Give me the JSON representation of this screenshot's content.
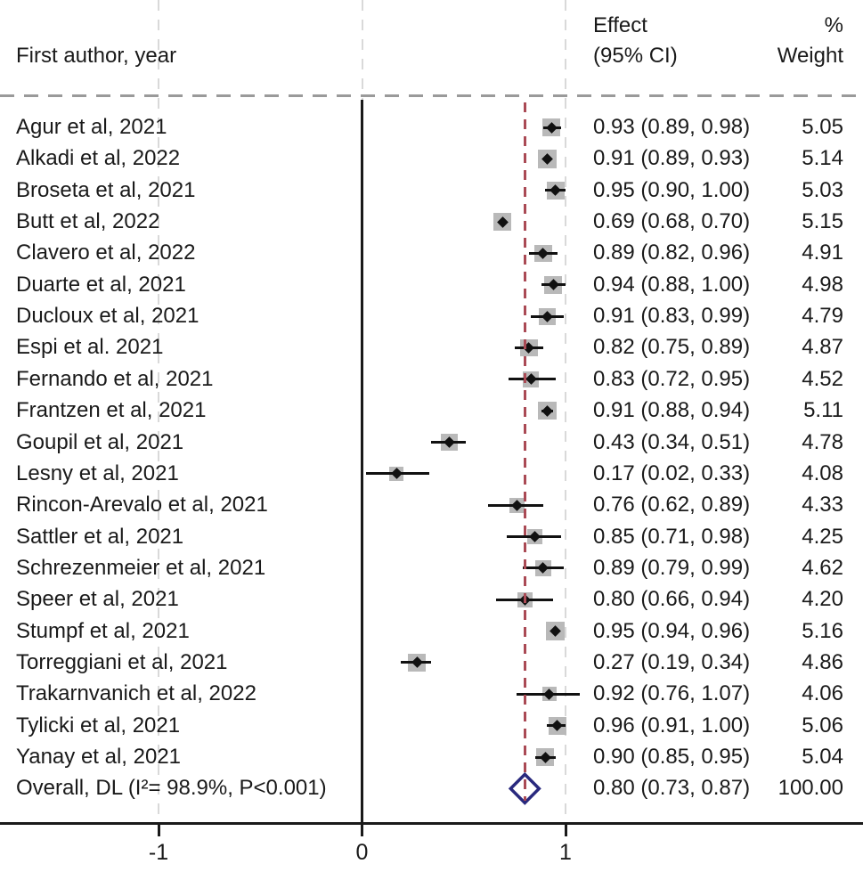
{
  "header": {
    "left": "First author, year",
    "effect_line1": "Effect",
    "effect_line2": "(95% CI)",
    "weight_line1": "%",
    "weight_line2": "Weight"
  },
  "chart_data": {
    "type": "forest",
    "title": "",
    "xlabel": "",
    "x_ticks": [
      -1,
      0,
      1
    ],
    "x_tick_labels": [
      "-1",
      "0",
      "1"
    ],
    "xlim": [
      -1.78,
      2.46
    ],
    "reference_line_value": 0,
    "overall_line_value": 0.8,
    "studies": [
      {
        "label": "Agur et al, 2021",
        "effect": 0.93,
        "lo": 0.89,
        "hi": 0.98,
        "effect_text": "0.93 (0.89, 0.98)",
        "weight": 5.05,
        "weight_text": "5.05"
      },
      {
        "label": "Alkadi et al, 2022",
        "effect": 0.91,
        "lo": 0.89,
        "hi": 0.93,
        "effect_text": "0.91 (0.89, 0.93)",
        "weight": 5.14,
        "weight_text": "5.14"
      },
      {
        "label": "Broseta et al, 2021",
        "effect": 0.95,
        "lo": 0.9,
        "hi": 1.0,
        "effect_text": "0.95 (0.90, 1.00)",
        "weight": 5.03,
        "weight_text": "5.03"
      },
      {
        "label": "Butt et al, 2022",
        "effect": 0.69,
        "lo": 0.68,
        "hi": 0.7,
        "effect_text": "0.69 (0.68, 0.70)",
        "weight": 5.15,
        "weight_text": "5.15"
      },
      {
        "label": "Clavero et al, 2022",
        "effect": 0.89,
        "lo": 0.82,
        "hi": 0.96,
        "effect_text": "0.89 (0.82, 0.96)",
        "weight": 4.91,
        "weight_text": "4.91"
      },
      {
        "label": "Duarte et al, 2021",
        "effect": 0.94,
        "lo": 0.88,
        "hi": 1.0,
        "effect_text": "0.94 (0.88, 1.00)",
        "weight": 4.98,
        "weight_text": "4.98"
      },
      {
        "label": "Ducloux et al, 2021",
        "effect": 0.91,
        "lo": 0.83,
        "hi": 0.99,
        "effect_text": "0.91 (0.83, 0.99)",
        "weight": 4.79,
        "weight_text": "4.79"
      },
      {
        "label": "Espi et al. 2021",
        "effect": 0.82,
        "lo": 0.75,
        "hi": 0.89,
        "effect_text": "0.82 (0.75, 0.89)",
        "weight": 4.87,
        "weight_text": "4.87"
      },
      {
        "label": "Fernando et al, 2021",
        "effect": 0.83,
        "lo": 0.72,
        "hi": 0.95,
        "effect_text": "0.83 (0.72, 0.95)",
        "weight": 4.52,
        "weight_text": "4.52"
      },
      {
        "label": "Frantzen et al, 2021",
        "effect": 0.91,
        "lo": 0.88,
        "hi": 0.94,
        "effect_text": "0.91 (0.88, 0.94)",
        "weight": 5.11,
        "weight_text": "5.11"
      },
      {
        "label": "Goupil et al, 2021",
        "effect": 0.43,
        "lo": 0.34,
        "hi": 0.51,
        "effect_text": "0.43 (0.34, 0.51)",
        "weight": 4.78,
        "weight_text": "4.78"
      },
      {
        "label": "Lesny et al, 2021",
        "effect": 0.17,
        "lo": 0.02,
        "hi": 0.33,
        "effect_text": "0.17 (0.02, 0.33)",
        "weight": 4.08,
        "weight_text": "4.08"
      },
      {
        "label": "Rincon-Arevalo et al, 2021",
        "effect": 0.76,
        "lo": 0.62,
        "hi": 0.89,
        "effect_text": "0.76 (0.62, 0.89)",
        "weight": 4.33,
        "weight_text": "4.33"
      },
      {
        "label": "Sattler et al, 2021",
        "effect": 0.85,
        "lo": 0.71,
        "hi": 0.98,
        "effect_text": "0.85 (0.71, 0.98)",
        "weight": 4.25,
        "weight_text": "4.25"
      },
      {
        "label": "Schrezenmeier et al, 2021",
        "effect": 0.89,
        "lo": 0.79,
        "hi": 0.99,
        "effect_text": "0.89 (0.79, 0.99)",
        "weight": 4.62,
        "weight_text": "4.62"
      },
      {
        "label": "Speer et al, 2021",
        "effect": 0.8,
        "lo": 0.66,
        "hi": 0.94,
        "effect_text": "0.80 (0.66, 0.94)",
        "weight": 4.2,
        "weight_text": "4.20"
      },
      {
        "label": "Stumpf et al, 2021",
        "effect": 0.95,
        "lo": 0.94,
        "hi": 0.96,
        "effect_text": "0.95 (0.94, 0.96)",
        "weight": 5.16,
        "weight_text": "5.16"
      },
      {
        "label": "Torreggiani et al, 2021",
        "effect": 0.27,
        "lo": 0.19,
        "hi": 0.34,
        "effect_text": "0.27 (0.19, 0.34)",
        "weight": 4.86,
        "weight_text": "4.86"
      },
      {
        "label": "Trakarnvanich et al, 2022",
        "effect": 0.92,
        "lo": 0.76,
        "hi": 1.07,
        "effect_text": "0.92 (0.76, 1.07)",
        "weight": 4.06,
        "weight_text": "4.06"
      },
      {
        "label": "Tylicki et al, 2021",
        "effect": 0.96,
        "lo": 0.91,
        "hi": 1.0,
        "effect_text": "0.96 (0.91, 1.00)",
        "weight": 5.06,
        "weight_text": "5.06"
      },
      {
        "label": "Yanay et al, 2021",
        "effect": 0.9,
        "lo": 0.85,
        "hi": 0.95,
        "effect_text": "0.90 (0.85, 0.95)",
        "weight": 5.04,
        "weight_text": "5.04"
      }
    ],
    "overall": {
      "label": "Overall, DL (I²= 98.9%, P<0.001)",
      "effect": 0.8,
      "lo": 0.73,
      "hi": 0.87,
      "effect_text": "0.80 (0.73, 0.87)",
      "weight_text": "100.00"
    },
    "colors": {
      "text": "#1a1a1a",
      "weight_square": "#b9b9b9",
      "point_marker": "#111111",
      "ci_line": "#111111",
      "overall_diamond_stroke": "#29297e",
      "overall_diamond_fill": "#ffffff",
      "reference_line": "#aa4a55",
      "axis": "#1a1a1a",
      "gridline": "#d9d9d9"
    },
    "legend": null,
    "grid": "vertical-dashed-at-ticks"
  }
}
